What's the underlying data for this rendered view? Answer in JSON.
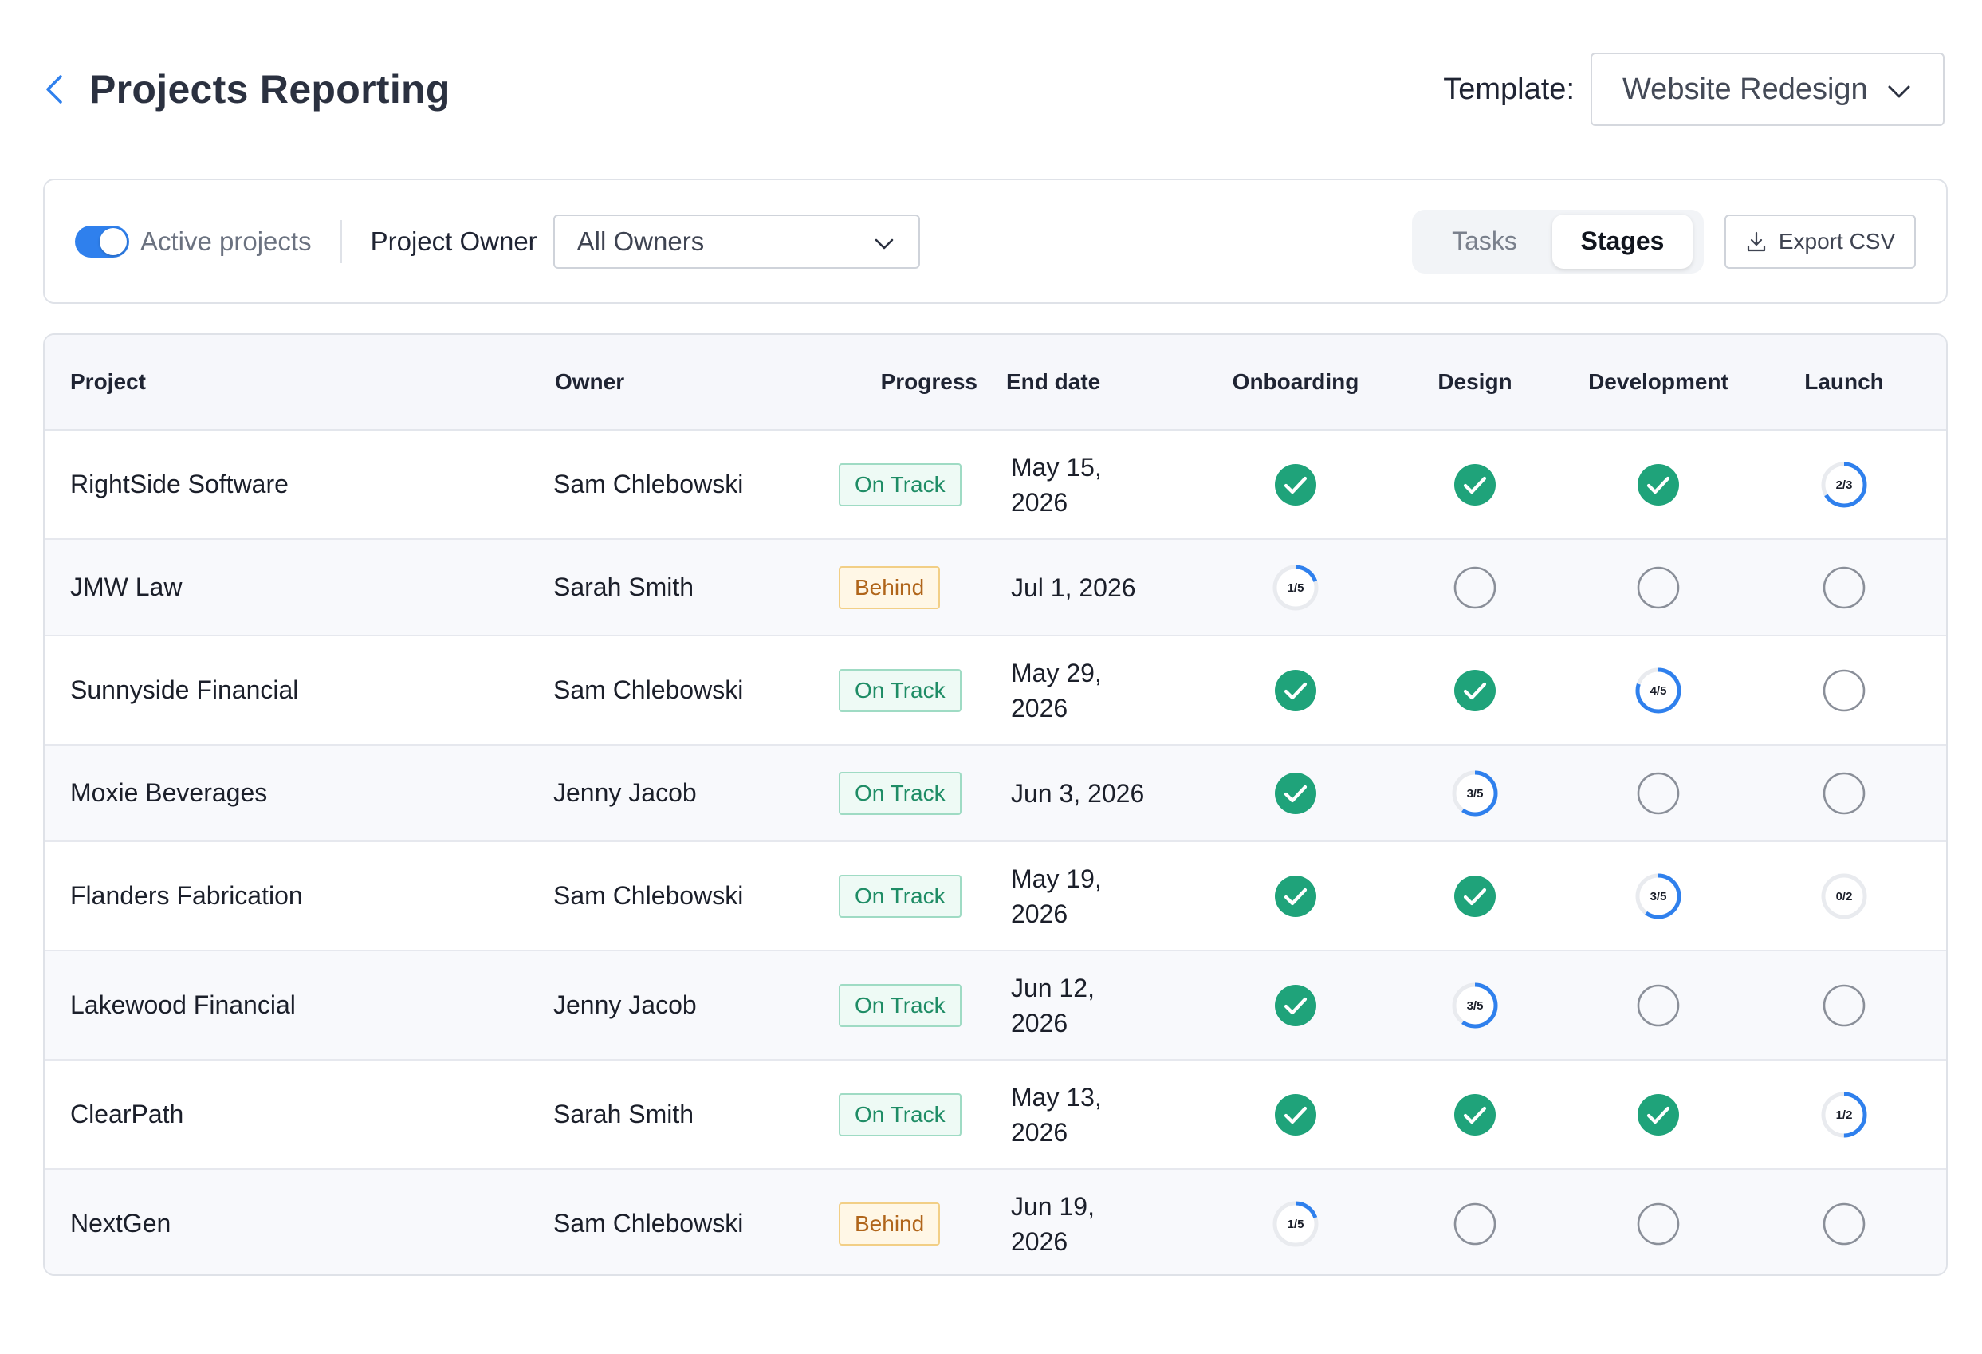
{
  "header": {
    "title": "Projects Reporting",
    "template_label": "Template:",
    "template_value": "Website Redesign"
  },
  "filters": {
    "active_projects_label": "Active projects",
    "active_projects_on": true,
    "owner_label": "Project Owner",
    "owner_value": "All Owners",
    "view_tabs": [
      "Tasks",
      "Stages"
    ],
    "selected_tab": "Stages",
    "export_label": "Export CSV"
  },
  "colors": {
    "accent": "#2f80ed",
    "complete": "#1fa37a",
    "on_track": "#1e8c65",
    "behind": "#b0651a"
  },
  "table": {
    "columns": [
      "Project",
      "Owner",
      "Progress",
      "End date",
      "Onboarding",
      "Design",
      "Development",
      "Launch"
    ],
    "rows": [
      {
        "project": "RightSide Software",
        "owner": "Sam Chlebowski",
        "progress": "On Track",
        "end_date": [
          "May 15,",
          "2026"
        ],
        "stages": [
          "done",
          "done",
          "done",
          "2/3"
        ]
      },
      {
        "project": "JMW Law",
        "owner": "Sarah Smith",
        "progress": "Behind",
        "end_date": [
          "Jul 1, 2026"
        ],
        "stages": [
          "1/5",
          "empty",
          "empty",
          "empty"
        ]
      },
      {
        "project": "Sunnyside Financial",
        "owner": "Sam Chlebowski",
        "progress": "On Track",
        "end_date": [
          "May 29,",
          "2026"
        ],
        "stages": [
          "done",
          "done",
          "4/5",
          "empty"
        ]
      },
      {
        "project": "Moxie Beverages",
        "owner": "Jenny Jacob",
        "progress": "On Track",
        "end_date": [
          "Jun 3, 2026"
        ],
        "stages": [
          "done",
          "3/5",
          "empty",
          "empty"
        ]
      },
      {
        "project": "Flanders Fabrication",
        "owner": "Sam Chlebowski",
        "progress": "On Track",
        "end_date": [
          "May 19,",
          "2026"
        ],
        "stages": [
          "done",
          "done",
          "3/5",
          "0/2"
        ]
      },
      {
        "project": "Lakewood Financial",
        "owner": "Jenny Jacob",
        "progress": "On Track",
        "end_date": [
          "Jun 12,",
          "2026"
        ],
        "stages": [
          "done",
          "3/5",
          "empty",
          "empty"
        ]
      },
      {
        "project": "ClearPath",
        "owner": "Sarah Smith",
        "progress": "On Track",
        "end_date": [
          "May 13,",
          "2026"
        ],
        "stages": [
          "done",
          "done",
          "done",
          "1/2"
        ]
      },
      {
        "project": "NextGen",
        "owner": "Sam Chlebowski",
        "progress": "Behind",
        "end_date": [
          "Jun 19,",
          "2026"
        ],
        "stages": [
          "1/5",
          "empty",
          "empty",
          "empty"
        ]
      }
    ]
  }
}
